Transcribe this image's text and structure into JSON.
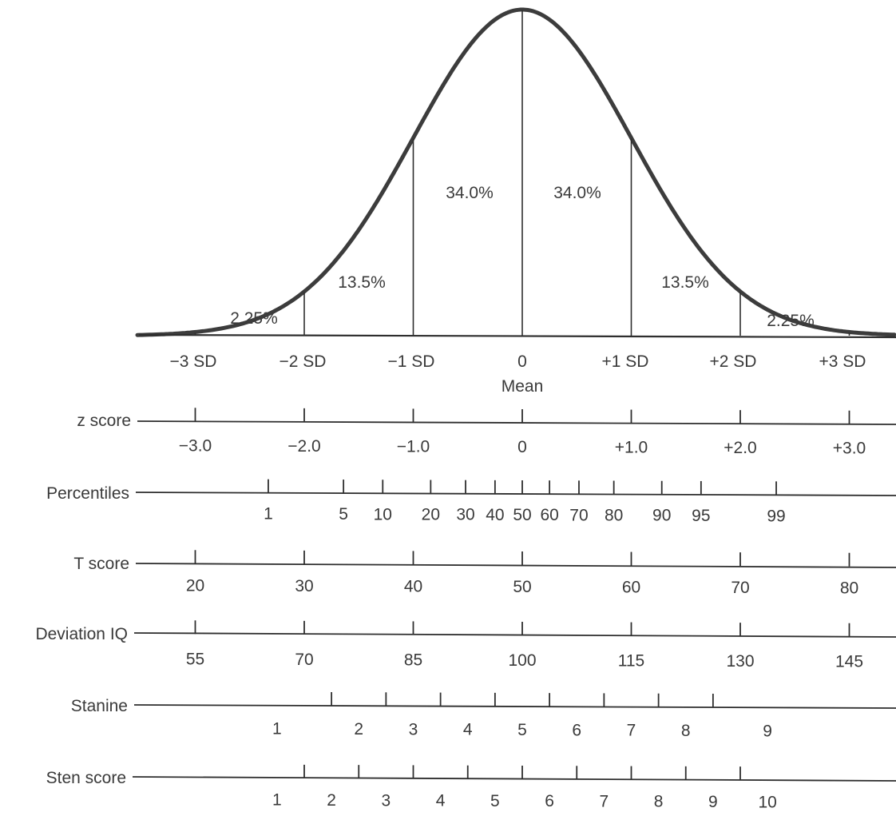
{
  "curve": {
    "region_labels": [
      "2.25%",
      "13.5%",
      "34.0%",
      "34.0%",
      "13.5%",
      "2.25%"
    ],
    "sd_labels": [
      "−3 SD",
      "−2 SD",
      "−1 SD",
      "0",
      "+1 SD",
      "+2 SD",
      "+3 SD"
    ],
    "mean_label": "Mean"
  },
  "scales": [
    {
      "name": "z score",
      "ticks": [
        -3,
        -2,
        -1,
        0,
        1,
        2,
        3
      ],
      "labels": [
        {
          "text": "−3.0",
          "at": -3
        },
        {
          "text": "−2.0",
          "at": -2
        },
        {
          "text": "−1.0",
          "at": -1
        },
        {
          "text": "0",
          "at": 0
        },
        {
          "text": "+1.0",
          "at": 1
        },
        {
          "text": "+2.0",
          "at": 2
        },
        {
          "text": "+3.0",
          "at": 3
        }
      ]
    },
    {
      "name": "Percentiles",
      "ticks": [
        -2.33,
        -1.64,
        -1.28,
        -0.84,
        -0.52,
        -0.25,
        0,
        0.25,
        0.52,
        0.84,
        1.28,
        1.64,
        2.33
      ],
      "labels": [
        {
          "text": "1",
          "at": -2.33
        },
        {
          "text": "5",
          "at": -1.64
        },
        {
          "text": "10",
          "at": -1.28
        },
        {
          "text": "20",
          "at": -0.84
        },
        {
          "text": "30",
          "at": -0.52
        },
        {
          "text": "40",
          "at": -0.25
        },
        {
          "text": "50",
          "at": 0
        },
        {
          "text": "60",
          "at": 0.25
        },
        {
          "text": "70",
          "at": 0.52
        },
        {
          "text": "80",
          "at": 0.84
        },
        {
          "text": "90",
          "at": 1.28
        },
        {
          "text": "95",
          "at": 1.64
        },
        {
          "text": "99",
          "at": 2.33
        }
      ]
    },
    {
      "name": "T score",
      "ticks": [
        -3,
        -2,
        -1,
        0,
        1,
        2,
        3
      ],
      "labels": [
        {
          "text": "20",
          "at": -3
        },
        {
          "text": "30",
          "at": -2
        },
        {
          "text": "40",
          "at": -1
        },
        {
          "text": "50",
          "at": 0
        },
        {
          "text": "60",
          "at": 1
        },
        {
          "text": "70",
          "at": 2
        },
        {
          "text": "80",
          "at": 3
        }
      ]
    },
    {
      "name": "Deviation IQ",
      "ticks": [
        -3,
        -2,
        -1,
        0,
        1,
        2,
        3
      ],
      "labels": [
        {
          "text": "55",
          "at": -3
        },
        {
          "text": "70",
          "at": -2
        },
        {
          "text": "85",
          "at": -1
        },
        {
          "text": "100",
          "at": 0
        },
        {
          "text": "115",
          "at": 1
        },
        {
          "text": "130",
          "at": 2
        },
        {
          "text": "145",
          "at": 3
        }
      ]
    },
    {
      "name": "Stanine",
      "ticks": [
        -1.75,
        -1.25,
        -0.75,
        -0.25,
        0.25,
        0.75,
        1.25,
        1.75
      ],
      "labels": [
        {
          "text": "1",
          "at": -2.25
        },
        {
          "text": "2",
          "at": -1.5
        },
        {
          "text": "3",
          "at": -1.0
        },
        {
          "text": "4",
          "at": -0.5
        },
        {
          "text": "5",
          "at": 0
        },
        {
          "text": "6",
          "at": 0.5
        },
        {
          "text": "7",
          "at": 1.0
        },
        {
          "text": "8",
          "at": 1.5
        },
        {
          "text": "9",
          "at": 2.25
        }
      ]
    },
    {
      "name": "Sten score",
      "ticks": [
        -2,
        -1.5,
        -1,
        -0.5,
        0,
        0.5,
        1,
        1.5,
        2
      ],
      "labels": [
        {
          "text": "1",
          "at": -2.25
        },
        {
          "text": "2",
          "at": -1.75
        },
        {
          "text": "3",
          "at": -1.25
        },
        {
          "text": "4",
          "at": -0.75
        },
        {
          "text": "5",
          "at": -0.25
        },
        {
          "text": "6",
          "at": 0.25
        },
        {
          "text": "7",
          "at": 0.75
        },
        {
          "text": "8",
          "at": 1.25
        },
        {
          "text": "9",
          "at": 1.75
        },
        {
          "text": "10",
          "at": 2.25
        }
      ]
    }
  ]
}
